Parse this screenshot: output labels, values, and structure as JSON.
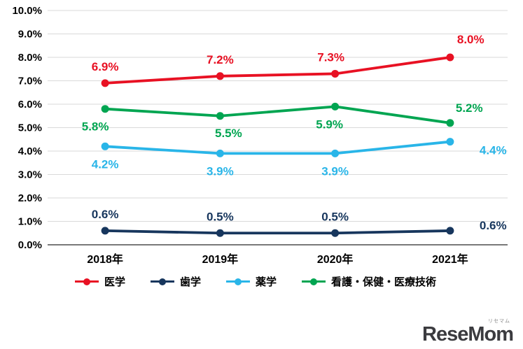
{
  "chart_data": {
    "type": "line",
    "categories": [
      "2018年",
      "2019年",
      "2020年",
      "2021年"
    ],
    "series": [
      {
        "name": "医学",
        "color": "#e81123",
        "values": [
          6.9,
          7.2,
          7.3,
          8.0
        ]
      },
      {
        "name": "歯学",
        "color": "#17365d",
        "values": [
          0.6,
          0.5,
          0.5,
          0.6
        ]
      },
      {
        "name": "薬学",
        "color": "#29b5e8",
        "values": [
          4.2,
          3.9,
          3.9,
          4.4
        ]
      },
      {
        "name": "看護・保健・医療技術",
        "color": "#00a551",
        "values": [
          5.8,
          5.5,
          5.9,
          5.2
        ]
      }
    ],
    "ylim": [
      0,
      10
    ],
    "ytick_step": 1,
    "yticks": [
      "0.0%",
      "1.0%",
      "2.0%",
      "3.0%",
      "4.0%",
      "5.0%",
      "6.0%",
      "7.0%",
      "8.0%",
      "9.0%",
      "10.0%"
    ],
    "data_label_format": "{value}%",
    "grid": true,
    "legend_position": "bottom",
    "title": "",
    "xlabel": "",
    "ylabel": ""
  },
  "legend": {
    "items": [
      "医学",
      "歯学",
      "薬学",
      "看護・保健・医療技術"
    ]
  },
  "logo": {
    "text": "ReseMom",
    "ruby": "リセマム"
  }
}
